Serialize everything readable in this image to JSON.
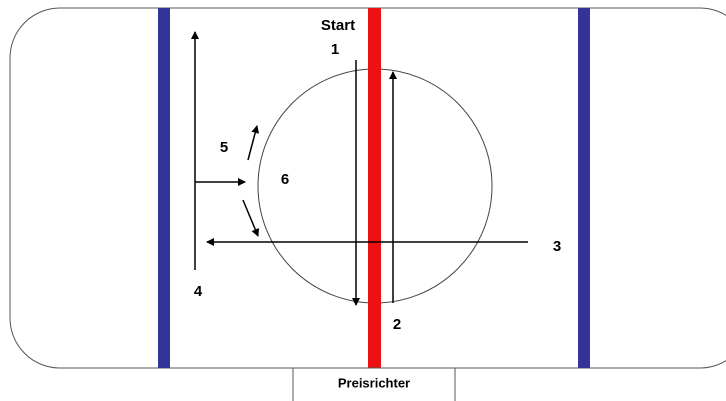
{
  "labels": {
    "start": "Start",
    "arrow_1": "1",
    "arrow_2": "2",
    "arrow_3": "3",
    "arrow_4": "4",
    "arrow_5": "5",
    "arrow_6": "6"
  },
  "judge_box": "Preisrichter"
}
